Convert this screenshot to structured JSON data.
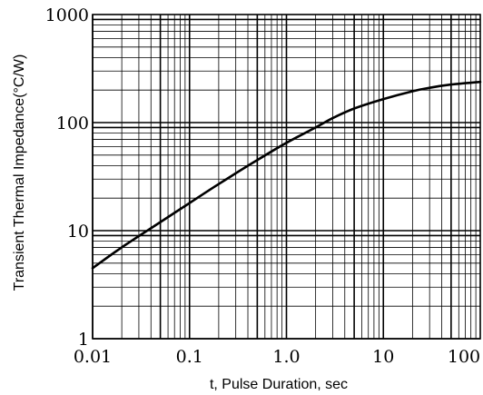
{
  "chart_data": {
    "type": "line",
    "title": "",
    "xlabel": "t, Pulse Duration, sec",
    "ylabel": "Transient Thermal Impedance(°C/W)",
    "xscale": "log",
    "yscale": "log",
    "xlim": [
      0.01,
      100
    ],
    "ylim": [
      1,
      1000
    ],
    "grid": true,
    "x_tick_labels": [
      "0.01",
      "0.1",
      "1.0",
      "10",
      "100"
    ],
    "y_tick_labels": [
      "1",
      "10",
      "100",
      "1000"
    ],
    "series": [
      {
        "x": [
          0.01,
          0.02,
          0.05,
          0.1,
          0.2,
          0.5,
          1,
          2,
          3,
          5,
          10,
          20,
          30,
          50,
          100
        ],
        "values": [
          4.5,
          7.0,
          12.0,
          18.0,
          27.0,
          45.0,
          65.0,
          90.0,
          110.0,
          135.0,
          165.0,
          195.0,
          210.0,
          225.0,
          238.0
        ]
      }
    ]
  }
}
